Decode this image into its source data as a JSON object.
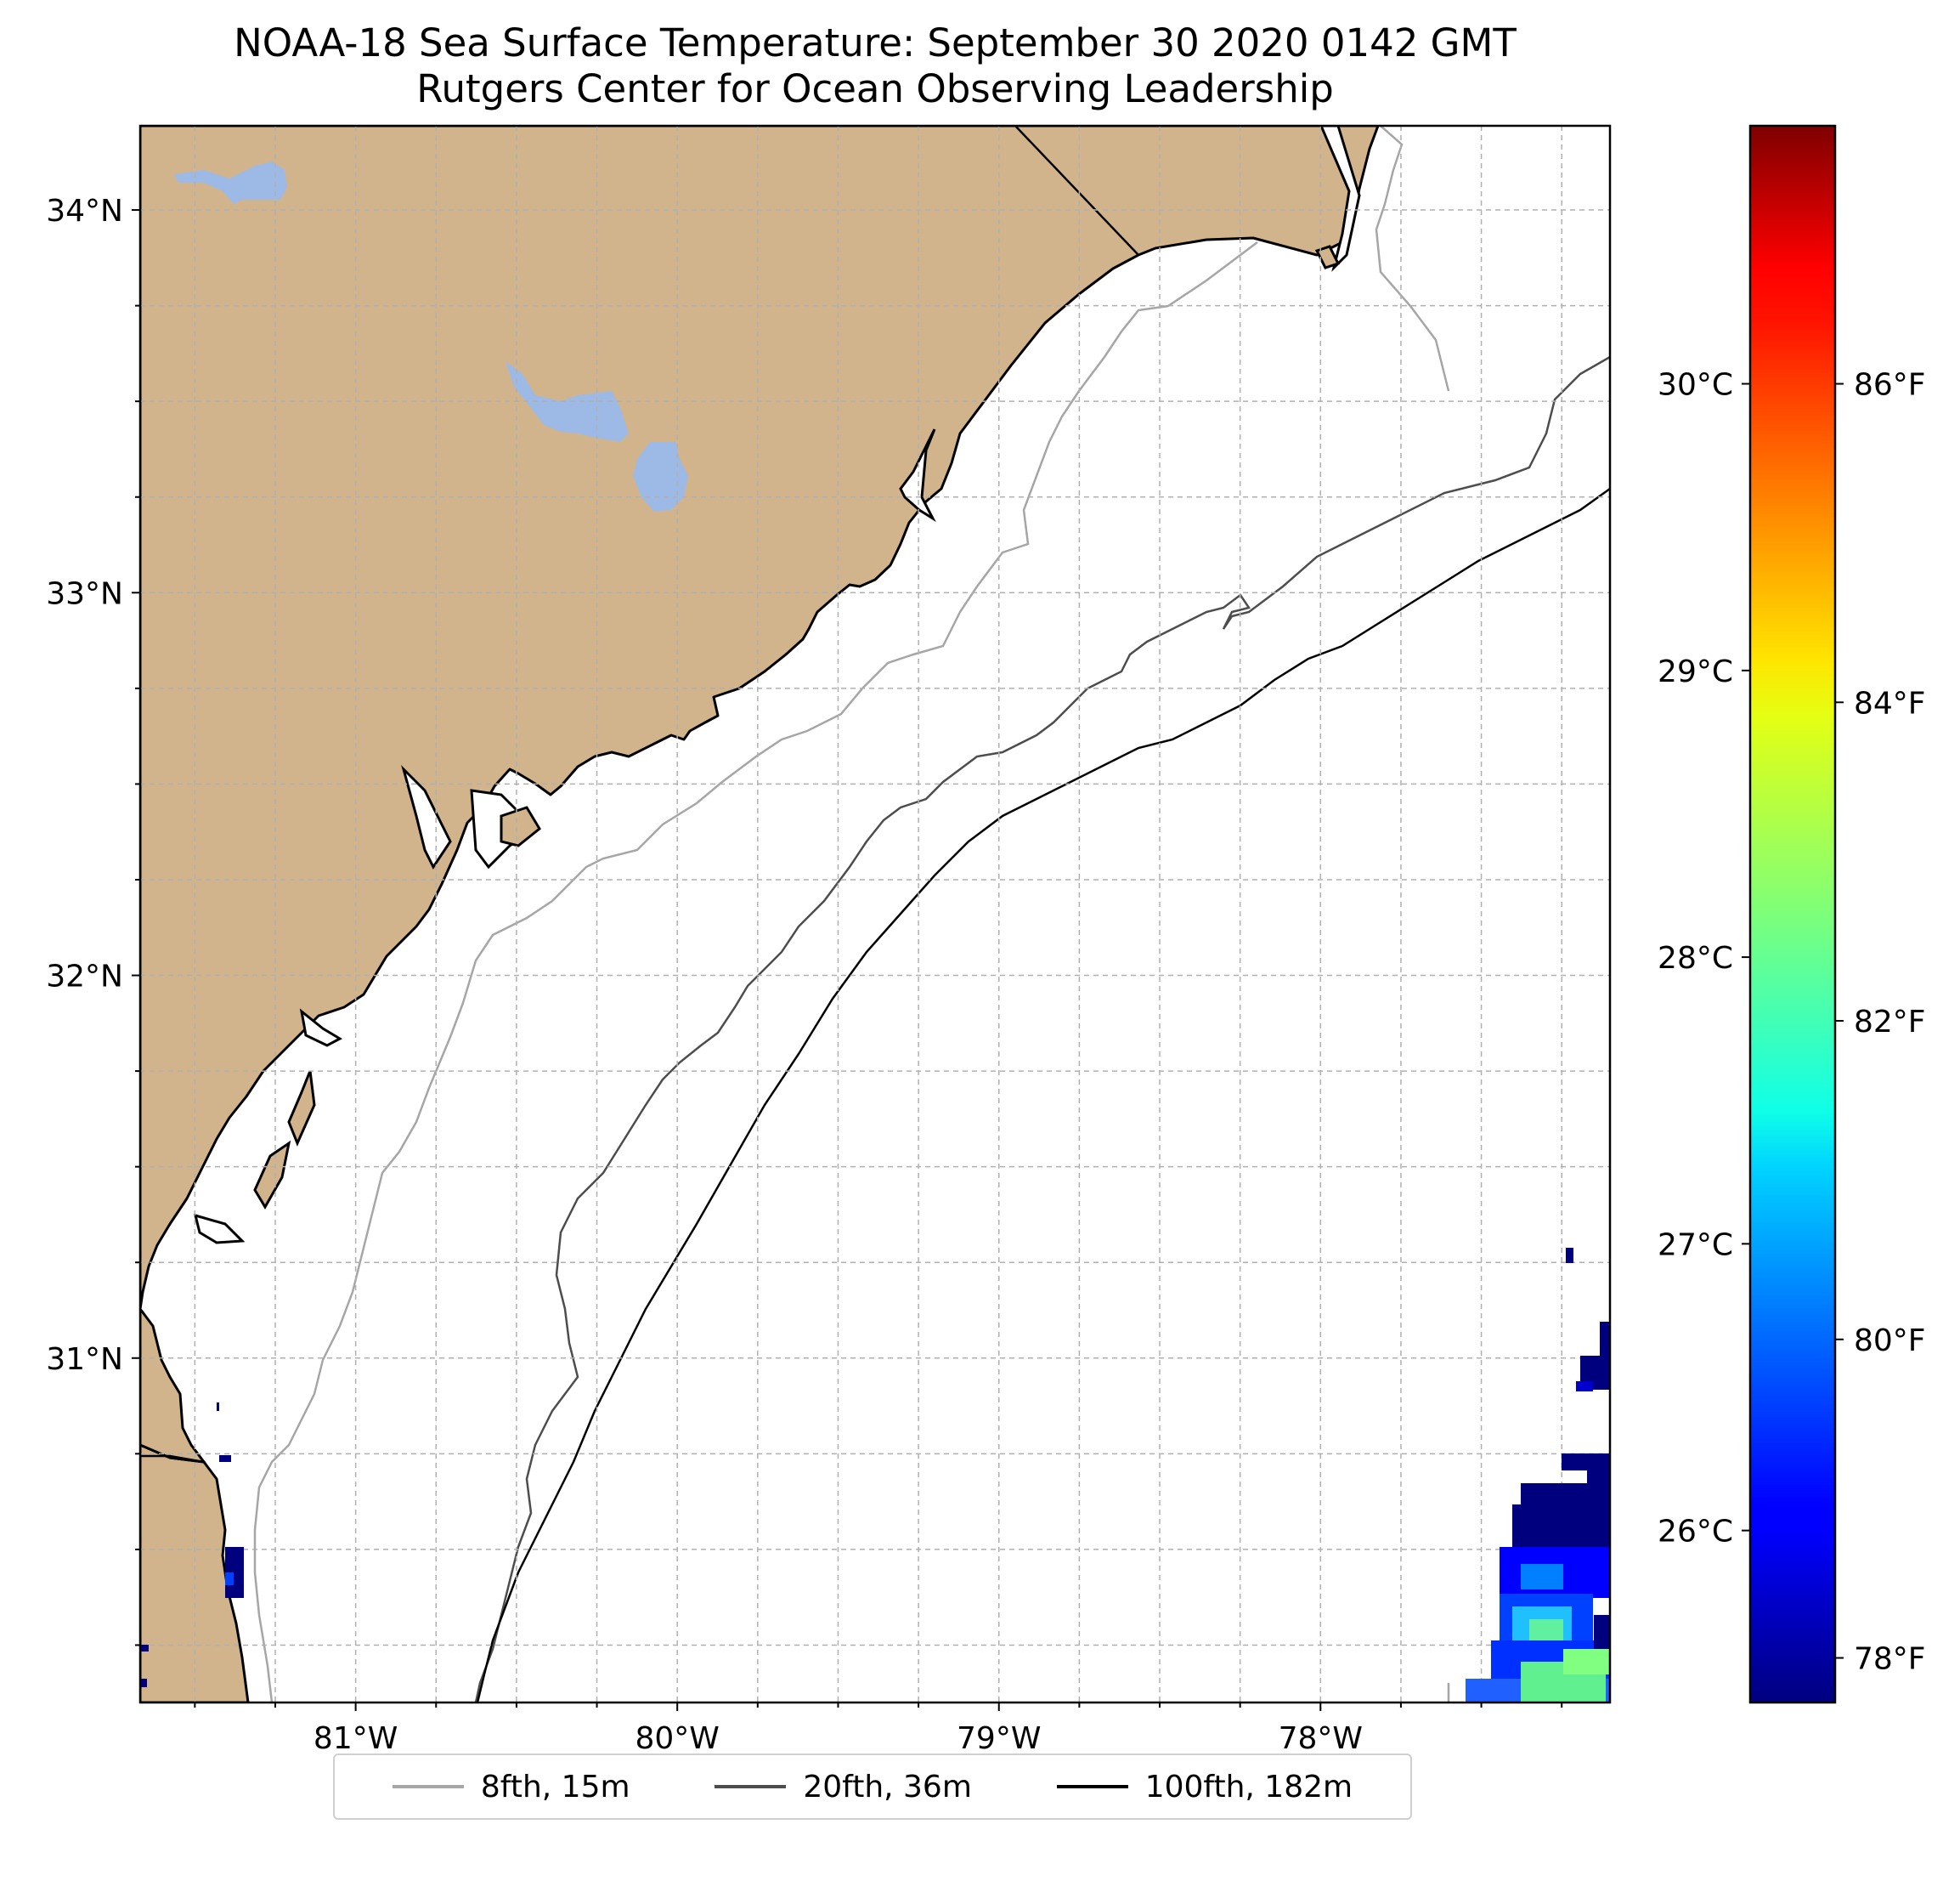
{
  "title": "NOAA-18 Sea Surface Temperature: September 30 2020 0142 GMT",
  "subtitle": "Rutgers Center for Ocean Observing Leadership",
  "map": {
    "extent": {
      "lon": [
        -81.67,
        -77.1
      ],
      "lat": [
        30.1,
        34.22
      ]
    },
    "lat_ticks": [
      {
        "value": 34,
        "label": "34°N"
      },
      {
        "value": 33,
        "label": "33°N"
      },
      {
        "value": 32,
        "label": "32°N"
      },
      {
        "value": 31,
        "label": "31°N"
      }
    ],
    "lon_ticks": [
      {
        "value": -81,
        "label": "81°W"
      },
      {
        "value": -80,
        "label": "80°W"
      },
      {
        "value": -79,
        "label": "79°W"
      },
      {
        "value": -78,
        "label": "78°W"
      }
    ],
    "gridlines": true,
    "colors": {
      "land": "#d2b48c",
      "water_body": "#9db9e6",
      "ocean": "#ffffff",
      "coast": "#000000",
      "grid": "#b0b0b0"
    }
  },
  "colorbar": {
    "colormap": "jet",
    "range_c": [
      25.4,
      30.9
    ],
    "celsius_ticks": [
      {
        "value": 30,
        "label": "30°C"
      },
      {
        "value": 29,
        "label": "29°C"
      },
      {
        "value": 28,
        "label": "28°C"
      },
      {
        "value": 27,
        "label": "27°C"
      },
      {
        "value": 26,
        "label": "26°C"
      }
    ],
    "fahrenheit_ticks": [
      {
        "value": 86,
        "label": "86°F"
      },
      {
        "value": 84,
        "label": "84°F"
      },
      {
        "value": 82,
        "label": "82°F"
      },
      {
        "value": 80,
        "label": "80°F"
      },
      {
        "value": 78,
        "label": "78°F"
      }
    ]
  },
  "legend": [
    {
      "label": "8fth, 15m",
      "color": "#a6a6a6"
    },
    {
      "label": "20fth, 36m",
      "color": "#4d4d4d"
    },
    {
      "label": "100fth, 182m",
      "color": "#000000"
    }
  ]
}
